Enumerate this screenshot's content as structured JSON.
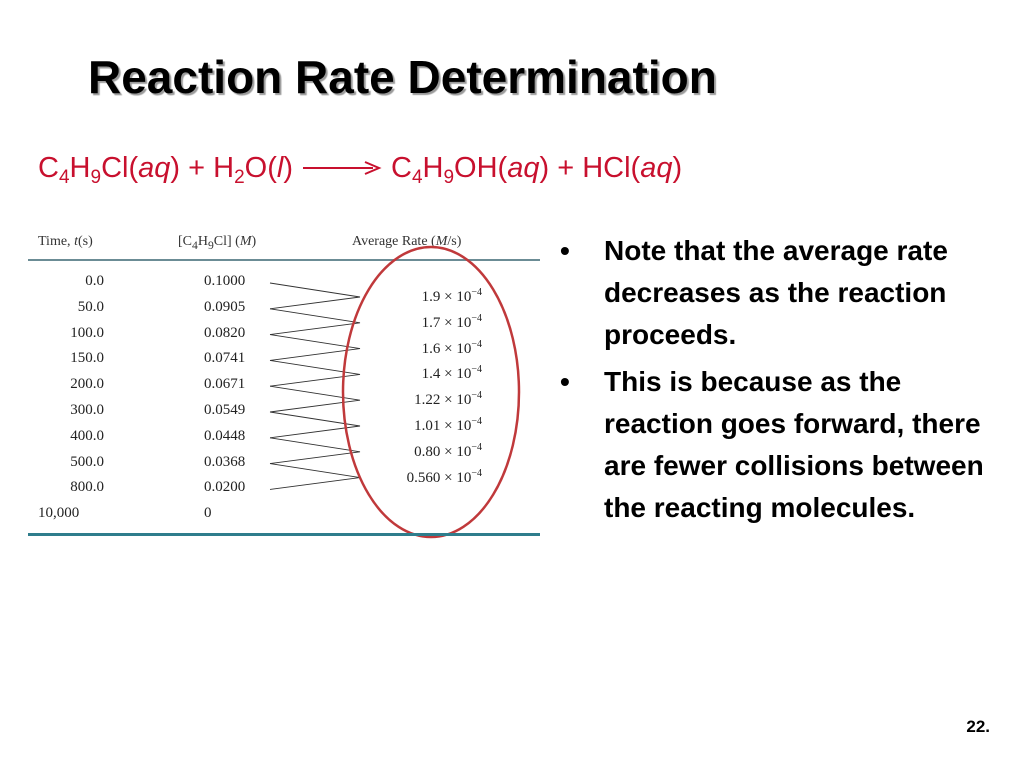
{
  "slide": {
    "title": "Reaction Rate Determination",
    "page_number": "22."
  },
  "equation": {
    "reactant1": {
      "c": "C",
      "c_sub": "4",
      "h": "H",
      "h_sub": "9",
      "rest": "Cl(",
      "state": "aq",
      "close": ")"
    },
    "plus1": " + ",
    "reactant2": {
      "h": "H",
      "h_sub": "2",
      "rest": "O(",
      "state": "l",
      "close": ")"
    },
    "product1": {
      "c": "C",
      "c_sub": "4",
      "h": "H",
      "h_sub": "9",
      "rest": "OH(",
      "state": "aq",
      "close": ")"
    },
    "plus2": " + ",
    "product2": {
      "rest": "HCl(",
      "state": "aq",
      "close": ")"
    },
    "color": "#c8102e"
  },
  "table": {
    "headers": {
      "time": {
        "pre": "Time, ",
        "var": "t",
        "post": "(s)"
      },
      "conc": {
        "pre": "[C",
        "sub1": "4",
        "mid": "H",
        "sub2": "9",
        "post": "Cl] (",
        "unit": "M",
        "close": ")"
      },
      "rate": {
        "pre": "Average Rate (",
        "unit": "M",
        "post": "/s)"
      }
    },
    "rows": [
      {
        "time": "0.0",
        "conc": "0.1000"
      },
      {
        "time": "50.0",
        "conc": "0.0905"
      },
      {
        "time": "100.0",
        "conc": "0.0820"
      },
      {
        "time": "150.0",
        "conc": "0.0741"
      },
      {
        "time": "200.0",
        "conc": "0.0671"
      },
      {
        "time": "300.0",
        "conc": "0.0549"
      },
      {
        "time": "400.0",
        "conc": "0.0448"
      },
      {
        "time": "500.0",
        "conc": "0.0368"
      },
      {
        "time": "800.0",
        "conc": "0.0200"
      },
      {
        "time": "10,000",
        "conc": "0"
      }
    ],
    "rates": [
      {
        "mantissa": "1.9",
        "times": " × 10",
        "exp": "−4"
      },
      {
        "mantissa": "1.7",
        "times": " × 10",
        "exp": "−4"
      },
      {
        "mantissa": "1.6",
        "times": " × 10",
        "exp": "−4"
      },
      {
        "mantissa": "1.4",
        "times": " × 10",
        "exp": "−4"
      },
      {
        "mantissa": "1.22",
        "times": " × 10",
        "exp": "−4"
      },
      {
        "mantissa": "1.01",
        "times": " × 10",
        "exp": "−4"
      },
      {
        "mantissa": "0.80",
        "times": " × 10",
        "exp": "−4"
      },
      {
        "mantissa": "0.560",
        "times": " × 10",
        "exp": "−4"
      }
    ],
    "rule_color": "#2f7d8c",
    "highlight_color": "#c0393b"
  },
  "bullets": [
    {
      "marker": "•",
      "text": "Note that the average rate decreases as the reaction proceeds."
    },
    {
      "marker": "•",
      "text": "This is because as the reaction goes forward, there are fewer collisions between the reacting molecules."
    }
  ]
}
